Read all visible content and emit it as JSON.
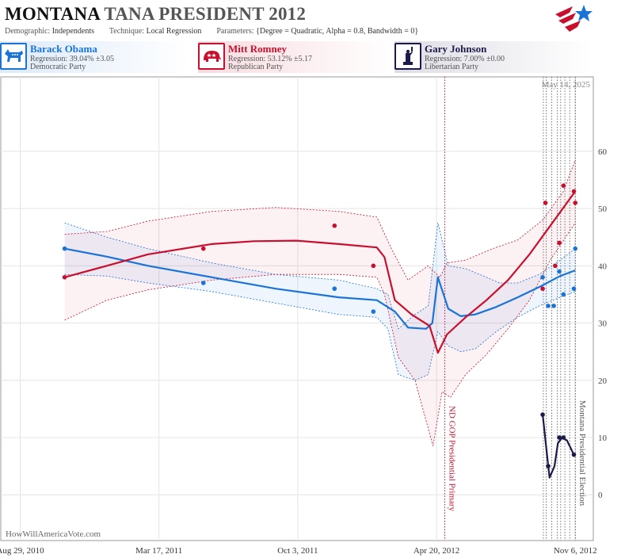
{
  "header": {
    "state": "MONTANA",
    "race": "TANA PRESIDENT 2012",
    "demographic_label": "Demographic:",
    "demographic_value": "Independents",
    "technique_label": "Technique:",
    "technique_value": "Local Regression",
    "parameters_label": "Parameters:",
    "parameters_value": "{Degree = Quadratic, Alpha = 0.8, Bandwidth = 0}"
  },
  "candidates": [
    {
      "name": "Barack Obama",
      "regression": "Regression: 39.04% ±3.05",
      "party": "Democratic Party",
      "color": "#1a74d8",
      "icon": "donkey-icon"
    },
    {
      "name": "Mitt Romney",
      "regression": "Regression: 53.12% ±5.17",
      "party": "Republican Party",
      "color": "#c8102e",
      "icon": "elephant-icon"
    },
    {
      "name": "Gary Johnson",
      "regression": "Regression: 7.00% ±0.00",
      "party": "Libertarian Party",
      "color": "#1c1a4a",
      "icon": "statue-of-liberty-icon"
    }
  ],
  "date_stamp": "May 14, 2025",
  "credit": "HowWillAmericaVote.com",
  "chart_data": {
    "type": "line",
    "x_axis_type": "date",
    "xlim": [
      "2010-08-01",
      "2012-12-02"
    ],
    "ylim": [
      -8,
      73
    ],
    "y_ticks": [
      0,
      10,
      20,
      30,
      40,
      50,
      60
    ],
    "x_ticks": [
      {
        "date": "2010-08-29",
        "label": "Aug 29, 2010"
      },
      {
        "date": "2011-03-17",
        "label": "Mar 17, 2011"
      },
      {
        "date": "2011-10-03",
        "label": "Oct 3, 2011"
      },
      {
        "date": "2012-04-20",
        "label": "Apr 20, 2012"
      },
      {
        "date": "2012-11-06",
        "label": "Nov 6, 2012"
      }
    ],
    "grid": true,
    "events": [
      {
        "date": "2012-05-02",
        "label": "ND GOP Presidential Primary",
        "color": "#c8102e"
      },
      {
        "date": "2012-11-06",
        "label": "Montana Presidential Election",
        "color": "#555555"
      }
    ],
    "debate_lines": [
      "2012-09-21",
      "2012-09-25",
      "2012-10-03",
      "2012-10-11",
      "2012-10-16",
      "2012-10-22",
      "2012-10-29"
    ],
    "series": [
      {
        "name": "Barack Obama",
        "color": "#1a74d8",
        "band_fill": "rgba(26,116,216,0.07)",
        "line": [
          [
            "2010-11-01",
            43
          ],
          [
            "2011-01-01",
            41.6
          ],
          [
            "2011-03-01",
            40
          ],
          [
            "2011-06-01",
            38
          ],
          [
            "2011-09-01",
            36
          ],
          [
            "2011-12-01",
            34.5
          ],
          [
            "2012-01-25",
            34
          ],
          [
            "2012-02-20",
            32
          ],
          [
            "2012-03-10",
            29.2
          ],
          [
            "2012-04-05",
            29
          ],
          [
            "2012-04-14",
            30
          ],
          [
            "2012-04-22",
            38
          ],
          [
            "2012-05-07",
            32.5
          ],
          [
            "2012-05-25",
            31.2
          ],
          [
            "2012-06-15",
            31.5
          ],
          [
            "2012-07-15",
            32.8
          ],
          [
            "2012-08-15",
            34.5
          ],
          [
            "2012-09-15",
            36.3
          ],
          [
            "2012-10-15",
            38.2
          ],
          [
            "2012-11-06",
            39.2
          ]
        ],
        "upper": [
          [
            "2010-11-01",
            47.5
          ],
          [
            "2011-01-01",
            45
          ],
          [
            "2011-03-01",
            43
          ],
          [
            "2011-06-01",
            40.5
          ],
          [
            "2011-09-01",
            38.5
          ],
          [
            "2011-12-01",
            37.5
          ],
          [
            "2012-01-25",
            36
          ],
          [
            "2012-02-10",
            35
          ],
          [
            "2012-02-25",
            29
          ],
          [
            "2012-03-20",
            31.5
          ],
          [
            "2012-04-08",
            33
          ],
          [
            "2012-04-22",
            47.5
          ],
          [
            "2012-05-07",
            40
          ],
          [
            "2012-06-01",
            39.5
          ],
          [
            "2012-07-01",
            38
          ],
          [
            "2012-07-20",
            37
          ],
          [
            "2012-08-15",
            37
          ],
          [
            "2012-09-15",
            38.5
          ],
          [
            "2012-10-15",
            41
          ],
          [
            "2012-11-06",
            43
          ]
        ],
        "lower": [
          [
            "2010-11-01",
            38.5
          ],
          [
            "2011-01-01",
            38.2
          ],
          [
            "2011-03-01",
            37
          ],
          [
            "2011-06-01",
            35.5
          ],
          [
            "2011-09-01",
            33.5
          ],
          [
            "2011-12-01",
            31.5
          ],
          [
            "2012-01-25",
            31
          ],
          [
            "2012-02-10",
            29
          ],
          [
            "2012-02-25",
            21
          ],
          [
            "2012-03-20",
            20
          ],
          [
            "2012-04-08",
            21
          ],
          [
            "2012-04-22",
            28.5
          ],
          [
            "2012-05-07",
            26
          ],
          [
            "2012-05-25",
            25
          ],
          [
            "2012-06-15",
            25.5
          ],
          [
            "2012-07-15",
            28.5
          ],
          [
            "2012-08-15",
            31
          ],
          [
            "2012-09-15",
            33
          ],
          [
            "2012-10-15",
            34.5
          ],
          [
            "2012-11-06",
            35.5
          ]
        ],
        "points": [
          [
            "2010-11-01",
            43
          ],
          [
            "2011-05-20",
            37
          ],
          [
            "2011-11-25",
            36
          ],
          [
            "2012-01-20",
            32
          ],
          [
            "2012-09-20",
            38
          ],
          [
            "2012-09-28",
            33
          ],
          [
            "2012-10-06",
            33
          ],
          [
            "2012-10-14",
            39
          ],
          [
            "2012-10-20",
            35
          ],
          [
            "2012-11-04",
            36
          ],
          [
            "2012-11-06",
            43
          ]
        ]
      },
      {
        "name": "Mitt Romney",
        "color": "#c8102e",
        "band_fill": "rgba(200,16,46,0.06)",
        "line": [
          [
            "2010-11-01",
            38
          ],
          [
            "2011-01-01",
            40
          ],
          [
            "2011-03-01",
            42
          ],
          [
            "2011-06-01",
            43.8
          ],
          [
            "2011-08-01",
            44.3
          ],
          [
            "2011-10-01",
            44.4
          ],
          [
            "2011-12-01",
            43.8
          ],
          [
            "2012-01-25",
            43.2
          ],
          [
            "2012-02-05",
            41.5
          ],
          [
            "2012-02-20",
            34
          ],
          [
            "2012-03-15",
            31.5
          ],
          [
            "2012-04-10",
            29.5
          ],
          [
            "2012-04-22",
            24.8
          ],
          [
            "2012-05-05",
            28
          ],
          [
            "2012-06-01",
            31
          ],
          [
            "2012-07-01",
            34
          ],
          [
            "2012-08-01",
            37.5
          ],
          [
            "2012-09-01",
            42
          ],
          [
            "2012-10-01",
            47
          ],
          [
            "2012-11-06",
            53
          ]
        ],
        "upper": [
          [
            "2010-11-01",
            45.5
          ],
          [
            "2011-01-01",
            46
          ],
          [
            "2011-03-01",
            47.8
          ],
          [
            "2011-06-01",
            49.5
          ],
          [
            "2011-09-01",
            50.2
          ],
          [
            "2011-12-01",
            49.5
          ],
          [
            "2012-01-25",
            48.5
          ],
          [
            "2012-02-15",
            43
          ],
          [
            "2012-03-10",
            37.5
          ],
          [
            "2012-04-08",
            40
          ],
          [
            "2012-04-25",
            38
          ],
          [
            "2012-05-05",
            40.5
          ],
          [
            "2012-06-01",
            41
          ],
          [
            "2012-07-10",
            43
          ],
          [
            "2012-08-15",
            44.5
          ],
          [
            "2012-09-20",
            48
          ],
          [
            "2012-10-20",
            53
          ],
          [
            "2012-11-06",
            58.5
          ]
        ],
        "lower": [
          [
            "2010-11-01",
            30.5
          ],
          [
            "2011-01-01",
            34
          ],
          [
            "2011-03-01",
            35.8
          ],
          [
            "2011-06-01",
            37.5
          ],
          [
            "2011-09-01",
            38.5
          ],
          [
            "2011-12-01",
            38.5
          ],
          [
            "2012-01-25",
            38
          ],
          [
            "2012-02-05",
            35
          ],
          [
            "2012-02-25",
            24
          ],
          [
            "2012-03-20",
            20
          ],
          [
            "2012-04-15",
            8.5
          ],
          [
            "2012-04-28",
            18
          ],
          [
            "2012-05-10",
            17
          ],
          [
            "2012-06-01",
            21
          ],
          [
            "2012-07-01",
            24.5
          ],
          [
            "2012-08-01",
            29
          ],
          [
            "2012-09-01",
            34
          ],
          [
            "2012-10-01",
            41
          ],
          [
            "2012-11-06",
            47.5
          ]
        ],
        "points": [
          [
            "2010-11-01",
            38
          ],
          [
            "2011-05-20",
            43
          ],
          [
            "2011-11-25",
            47
          ],
          [
            "2012-01-20",
            40
          ],
          [
            "2012-09-20",
            36
          ],
          [
            "2012-09-24",
            51
          ],
          [
            "2012-10-08",
            40
          ],
          [
            "2012-10-14",
            44
          ],
          [
            "2012-10-20",
            54
          ],
          [
            "2012-11-04",
            53
          ],
          [
            "2012-11-06",
            51
          ]
        ]
      },
      {
        "name": "Gary Johnson",
        "color": "#1c1a4a",
        "line": [
          [
            "2012-09-20",
            14
          ],
          [
            "2012-09-28",
            5
          ],
          [
            "2012-09-30",
            3
          ],
          [
            "2012-10-07",
            5
          ],
          [
            "2012-10-12",
            9
          ],
          [
            "2012-10-18",
            10
          ],
          [
            "2012-10-25",
            9.5
          ],
          [
            "2012-11-04",
            7
          ]
        ],
        "points": [
          [
            "2012-09-20",
            14
          ],
          [
            "2012-09-28",
            5
          ],
          [
            "2012-10-14",
            10
          ],
          [
            "2012-10-20",
            10
          ],
          [
            "2012-11-04",
            7
          ]
        ]
      }
    ]
  }
}
